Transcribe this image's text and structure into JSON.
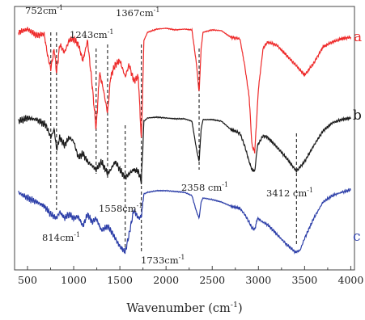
{
  "chart_data": {
    "type": "line",
    "title": "",
    "xlabel": "Wavenumber (cm",
    "xlabel_sup": "-1",
    "xlabel_end": ")",
    "xlim": [
      360,
      4040
    ],
    "ylabel": "",
    "x_ticks": [
      {
        "value": 500,
        "label": "500"
      },
      {
        "value": 1000,
        "label": "1000"
      },
      {
        "value": 1500,
        "label": "1500"
      },
      {
        "value": 2000,
        "label": "2000"
      },
      {
        "value": 2500,
        "label": "2500"
      },
      {
        "value": 3000,
        "label": "3000"
      },
      {
        "value": 3500,
        "label": "3500"
      },
      {
        "value": 4000,
        "label": "4000"
      }
    ],
    "grid": false,
    "legend": "none",
    "series": [
      {
        "name": "a",
        "color": "#ee2a2a",
        "baseline": 34,
        "points": [
          [
            400,
            40
          ],
          [
            500,
            36
          ],
          [
            600,
            44
          ],
          [
            680,
            42
          ],
          [
            720,
            70
          ],
          [
            752,
            85
          ],
          [
            790,
            60
          ],
          [
            814,
            90
          ],
          [
            850,
            55
          ],
          [
            900,
            65
          ],
          [
            950,
            50
          ],
          [
            1000,
            48
          ],
          [
            1050,
            55
          ],
          [
            1100,
            75
          ],
          [
            1150,
            50
          ],
          [
            1200,
            105
          ],
          [
            1243,
            160
          ],
          [
            1280,
            90
          ],
          [
            1320,
            110
          ],
          [
            1367,
            140
          ],
          [
            1400,
            95
          ],
          [
            1450,
            80
          ],
          [
            1500,
            75
          ],
          [
            1558,
            95
          ],
          [
            1600,
            80
          ],
          [
            1650,
            100
          ],
          [
            1700,
            95
          ],
          [
            1733,
            175
          ],
          [
            1760,
            50
          ],
          [
            1800,
            40
          ],
          [
            1900,
            36
          ],
          [
            2000,
            35
          ],
          [
            2100,
            37
          ],
          [
            2200,
            36
          ],
          [
            2280,
            37
          ],
          [
            2330,
            80
          ],
          [
            2358,
            115
          ],
          [
            2380,
            60
          ],
          [
            2400,
            40
          ],
          [
            2500,
            37
          ],
          [
            2600,
            38
          ],
          [
            2700,
            46
          ],
          [
            2800,
            48
          ],
          [
            2850,
            80
          ],
          [
            2900,
            120
          ],
          [
            2930,
            180
          ],
          [
            2960,
            188
          ],
          [
            2990,
            130
          ],
          [
            3000,
            110
          ],
          [
            3050,
            60
          ],
          [
            3100,
            52
          ],
          [
            3200,
            56
          ],
          [
            3300,
            68
          ],
          [
            3400,
            80
          ],
          [
            3500,
            93
          ],
          [
            3600,
            78
          ],
          [
            3700,
            58
          ],
          [
            3800,
            52
          ],
          [
            3900,
            48
          ],
          [
            4000,
            46
          ]
        ]
      },
      {
        "name": "b",
        "color": "#1a1a1a",
        "baseline": 146,
        "points": [
          [
            400,
            150
          ],
          [
            500,
            146
          ],
          [
            600,
            148
          ],
          [
            700,
            155
          ],
          [
            752,
            170
          ],
          [
            790,
            160
          ],
          [
            814,
            185
          ],
          [
            850,
            170
          ],
          [
            900,
            180
          ],
          [
            950,
            170
          ],
          [
            1000,
            175
          ],
          [
            1050,
            195
          ],
          [
            1100,
            190
          ],
          [
            1150,
            200
          ],
          [
            1200,
            205
          ],
          [
            1243,
            210
          ],
          [
            1300,
            200
          ],
          [
            1367,
            215
          ],
          [
            1400,
            210
          ],
          [
            1450,
            200
          ],
          [
            1500,
            210
          ],
          [
            1558,
            220
          ],
          [
            1600,
            215
          ],
          [
            1650,
            210
          ],
          [
            1700,
            212
          ],
          [
            1733,
            225
          ],
          [
            1760,
            150
          ],
          [
            1800,
            146
          ],
          [
            1900,
            145
          ],
          [
            2000,
            146
          ],
          [
            2100,
            147
          ],
          [
            2200,
            147
          ],
          [
            2280,
            150
          ],
          [
            2330,
            185
          ],
          [
            2358,
            200
          ],
          [
            2380,
            160
          ],
          [
            2400,
            148
          ],
          [
            2500,
            148
          ],
          [
            2600,
            150
          ],
          [
            2700,
            160
          ],
          [
            2800,
            165
          ],
          [
            2850,
            180
          ],
          [
            2900,
            200
          ],
          [
            2930,
            210
          ],
          [
            2960,
            212
          ],
          [
            2990,
            180
          ],
          [
            3050,
            168
          ],
          [
            3100,
            170
          ],
          [
            3200,
            182
          ],
          [
            3300,
            195
          ],
          [
            3412,
            212
          ],
          [
            3500,
            200
          ],
          [
            3600,
            180
          ],
          [
            3700,
            162
          ],
          [
            3800,
            152
          ],
          [
            3900,
            148
          ],
          [
            4000,
            146
          ]
        ]
      },
      {
        "name": "c",
        "color": "#2c3ea8",
        "baseline": 234,
        "points": [
          [
            400,
            238
          ],
          [
            500,
            245
          ],
          [
            600,
            250
          ],
          [
            680,
            255
          ],
          [
            752,
            265
          ],
          [
            814,
            270
          ],
          [
            850,
            262
          ],
          [
            900,
            270
          ],
          [
            950,
            265
          ],
          [
            1000,
            270
          ],
          [
            1050,
            268
          ],
          [
            1100,
            280
          ],
          [
            1150,
            265
          ],
          [
            1200,
            275
          ],
          [
            1243,
            270
          ],
          [
            1300,
            285
          ],
          [
            1367,
            280
          ],
          [
            1400,
            285
          ],
          [
            1450,
            295
          ],
          [
            1500,
            305
          ],
          [
            1558,
            312
          ],
          [
            1600,
            290
          ],
          [
            1650,
            260
          ],
          [
            1700,
            270
          ],
          [
            1733,
            268
          ],
          [
            1760,
            240
          ],
          [
            1800,
            238
          ],
          [
            1900,
            236
          ],
          [
            2000,
            236
          ],
          [
            2100,
            237
          ],
          [
            2200,
            238
          ],
          [
            2280,
            242
          ],
          [
            2330,
            262
          ],
          [
            2358,
            270
          ],
          [
            2380,
            250
          ],
          [
            2400,
            245
          ],
          [
            2500,
            247
          ],
          [
            2600,
            250
          ],
          [
            2700,
            255
          ],
          [
            2800,
            258
          ],
          [
            2850,
            265
          ],
          [
            2900,
            275
          ],
          [
            2930,
            282
          ],
          [
            2960,
            284
          ],
          [
            2990,
            270
          ],
          [
            3050,
            275
          ],
          [
            3100,
            278
          ],
          [
            3200,
            290
          ],
          [
            3300,
            302
          ],
          [
            3400,
            312
          ],
          [
            3450,
            310
          ],
          [
            3500,
            295
          ],
          [
            3600,
            270
          ],
          [
            3700,
            250
          ],
          [
            3800,
            242
          ],
          [
            3900,
            238
          ],
          [
            4000,
            235
          ]
        ]
      }
    ],
    "series_labels": [
      {
        "series": "a",
        "text": "a",
        "color": "#ee2a2a"
      },
      {
        "series": "b",
        "text": "b",
        "color": "#1a1a1a"
      },
      {
        "series": "c",
        "text": "c",
        "color": "#2c3ea8"
      }
    ],
    "reference_lines": [
      {
        "x": 752
      },
      {
        "x": 814
      },
      {
        "x": 1243
      },
      {
        "x": 1367
      },
      {
        "x": 1558
      },
      {
        "x": 1733
      },
      {
        "x": 2358
      },
      {
        "x": 3412
      }
    ],
    "annotations": [
      {
        "text": "752cm",
        "sup": "-1"
      },
      {
        "text": "1243cm",
        "sup": "-1"
      },
      {
        "text": "1367cm",
        "sup": "-1"
      },
      {
        "text": "2358 cm",
        "sup": "-1"
      },
      {
        "text": "3412 cm",
        "sup": "-1"
      },
      {
        "text": "1558cm",
        "sup": "-1"
      },
      {
        "text": "814cm",
        "sup": "-1"
      },
      {
        "text": "1733cm",
        "sup": "-1"
      }
    ]
  }
}
